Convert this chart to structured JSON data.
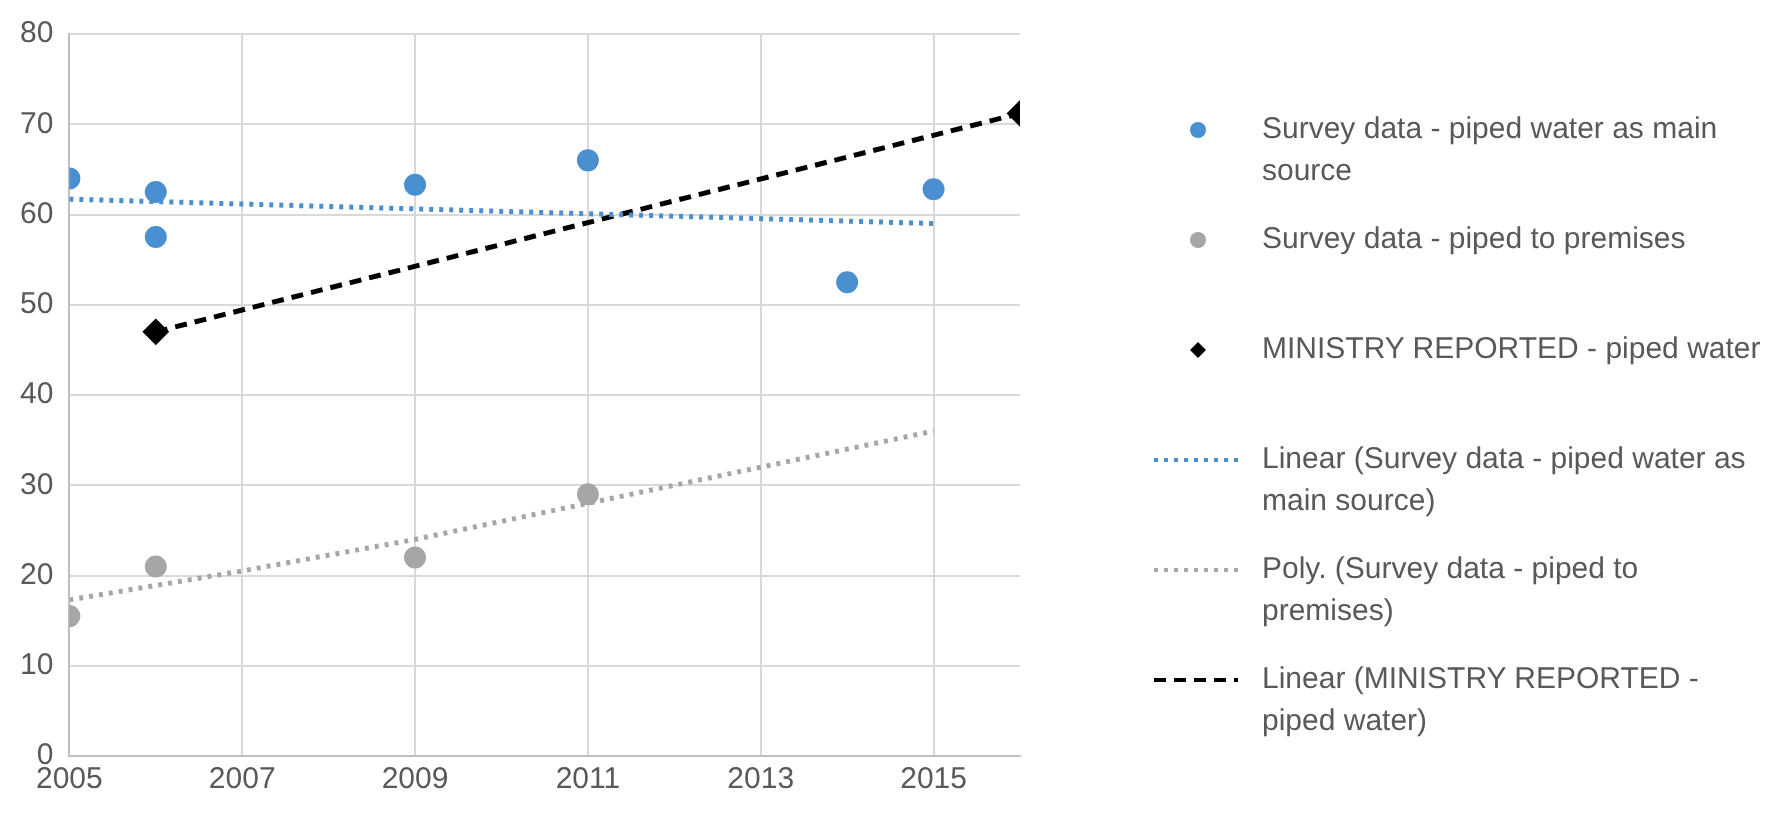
{
  "chart_data": {
    "type": "scatter",
    "xlim": [
      2005,
      2016
    ],
    "xticks": [
      2005,
      2007,
      2009,
      2011,
      2013,
      2015
    ],
    "ylim": [
      0,
      80
    ],
    "yticks": [
      0,
      10,
      20,
      30,
      40,
      50,
      60,
      70,
      80
    ],
    "grid": true,
    "legend": "right",
    "series": [
      {
        "name": "Survey data - piped water as main source",
        "type": "scatter",
        "marker": "circle",
        "color": "#4a8fd0",
        "x": [
          2005,
          2006,
          2006,
          2009,
          2011,
          2014,
          2015
        ],
        "values": [
          64,
          62.5,
          57.5,
          63.3,
          66,
          52.5,
          62.8
        ]
      },
      {
        "name": "Survey data - piped to premises",
        "type": "scatter",
        "marker": "circle",
        "color": "#a6a6a6",
        "x": [
          2005,
          2006,
          2009,
          2011
        ],
        "values": [
          15.5,
          21,
          22,
          29
        ]
      },
      {
        "name": "MINISTRY REPORTED - piped water",
        "type": "scatter",
        "marker": "diamond",
        "color": "#000000",
        "x": [
          2006,
          2016
        ],
        "values": [
          47,
          71.2
        ]
      },
      {
        "name": "Linear (Survey data - piped water as main source)",
        "type": "line",
        "marker": "none",
        "line_style": "dotted",
        "color": "#4a8fd0",
        "x": [
          2005,
          2015
        ],
        "values": [
          61.7,
          59
        ]
      },
      {
        "name": "Poly. (Survey data - piped to premises)",
        "type": "line",
        "marker": "none",
        "line_style": "dotted",
        "color": "#a6a6a6",
        "x": [
          2005,
          2007,
          2009,
          2011,
          2013,
          2015
        ],
        "values": [
          17.3,
          20.5,
          24,
          28,
          32,
          36
        ]
      },
      {
        "name": "Linear (MINISTRY REPORTED - piped water)",
        "type": "line",
        "marker": "none",
        "line_style": "dashed",
        "color": "#000000",
        "x": [
          2006,
          2016
        ],
        "values": [
          47,
          71.2
        ]
      }
    ]
  }
}
